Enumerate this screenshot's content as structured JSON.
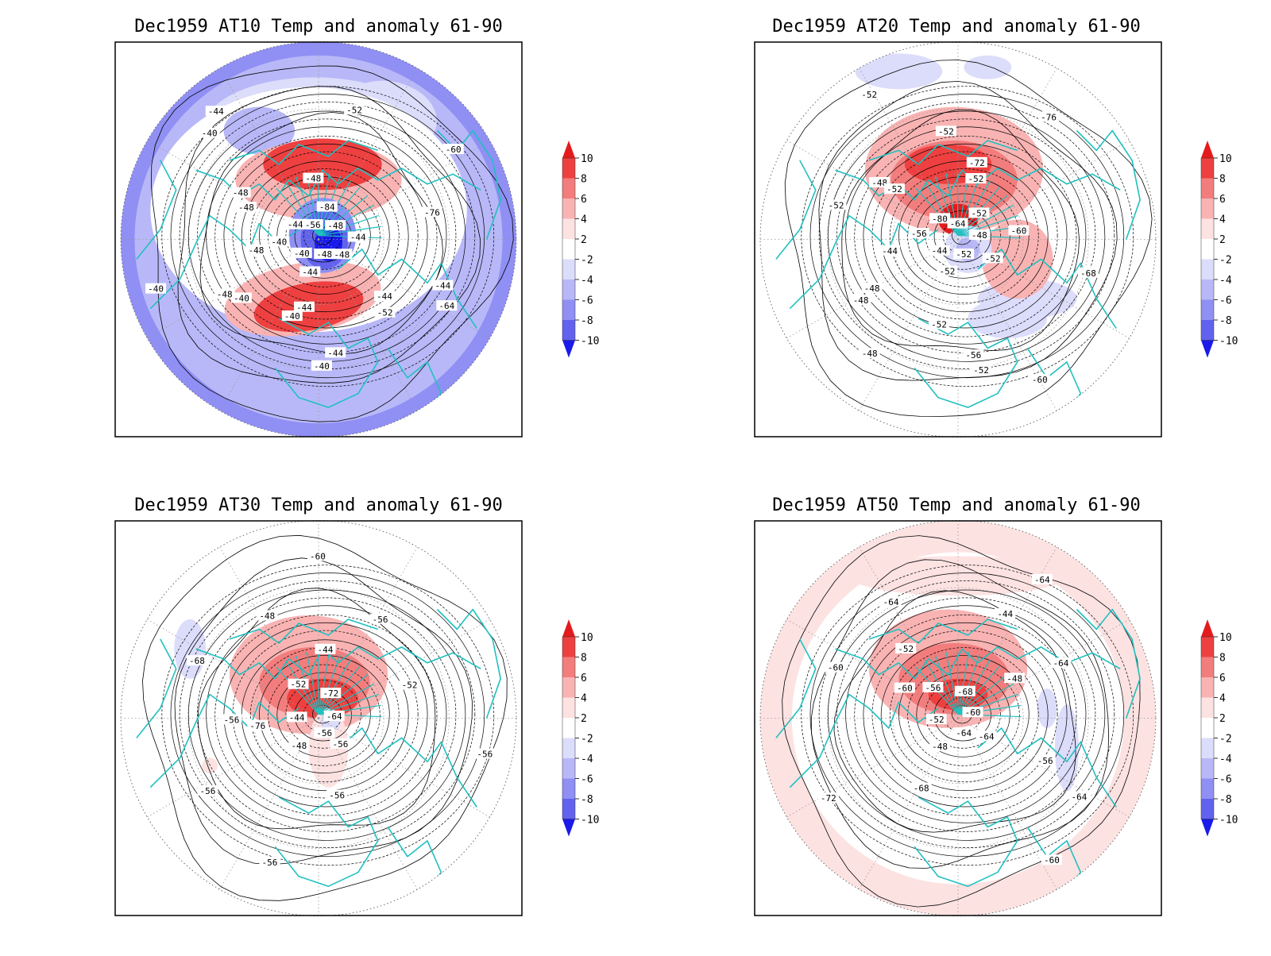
{
  "figure": {
    "panels": [
      {
        "id": "at10",
        "title": "Dec1959 AT10 Temp and anomaly 61-90",
        "anomaly_field": "at10",
        "contour_labels": [
          "-48",
          "-44",
          "-44",
          "-44",
          "-44",
          "-44",
          "-40",
          "-40",
          "-40",
          "-40",
          "-48",
          "-40",
          "-44",
          "-48",
          "-52",
          "-56",
          "-60",
          "-76",
          "-84",
          "-64",
          "-52",
          "-48",
          "-40",
          "-40",
          "-44",
          "-48",
          "-48",
          "-48",
          "-48",
          "-44"
        ]
      },
      {
        "id": "at20",
        "title": "Dec1959 AT20 Temp and anomaly 61-90",
        "anomaly_field": "at20",
        "contour_labels": [
          "-52",
          "-52",
          "-52",
          "-52",
          "-48",
          "-44",
          "-44",
          "-48",
          "-52",
          "-56",
          "-72",
          "-76",
          "-80",
          "-60",
          "-68",
          "-64",
          "-60",
          "-56",
          "-52",
          "-48",
          "-48",
          "-48",
          "-52",
          "-52",
          "-52",
          "-52",
          "-52"
        ]
      },
      {
        "id": "at30",
        "title": "Dec1959 AT30 Temp and anomaly 61-90",
        "anomaly_field": "at30",
        "contour_labels": [
          "-56",
          "-56",
          "-56",
          "-48",
          "-48",
          "-44",
          "-44",
          "-52",
          "-56",
          "-52",
          "-56",
          "-56",
          "-72",
          "-76",
          "-68",
          "-64",
          "-60",
          "-56",
          "-56"
        ]
      },
      {
        "id": "at50",
        "title": "Dec1959 AT50 Temp and anomaly 61-90",
        "anomaly_field": "at50",
        "contour_labels": [
          "-64",
          "-60",
          "-52",
          "-48",
          "-44",
          "-48",
          "-52",
          "-56",
          "-60",
          "-56",
          "-68",
          "-72",
          "-68",
          "-60",
          "-64",
          "-60",
          "-64",
          "-64",
          "-64",
          "-64"
        ]
      }
    ],
    "colorbar": {
      "ticks": [
        "10",
        "8",
        "6",
        "4",
        "2",
        "-2",
        "-4",
        "-6",
        "-8",
        "-10"
      ],
      "colors": [
        "#e41a1c",
        "#ee4040",
        "#f37d7d",
        "#f9b3b3",
        "#fde2e2",
        "#ffffff",
        "#dcdcfb",
        "#b8b8f8",
        "#8f8ff4",
        "#6262ef",
        "#1a1aea"
      ]
    },
    "colors": {
      "coast": "#20c0c0",
      "contour": "#000000",
      "grid": "#999999"
    }
  },
  "chart_data": [
    {
      "type": "heatmap",
      "title": "Dec1959 AT10 Temp and anomaly 61-90",
      "projection": "north polar stereographic",
      "field_units": "°C",
      "contour_range": [
        -84,
        -40
      ],
      "anomaly_range": [
        -10,
        10
      ],
      "colorbar_ticks": [
        10,
        8,
        6,
        4,
        2,
        -2,
        -4,
        -6,
        -8,
        -10
      ]
    },
    {
      "type": "heatmap",
      "title": "Dec1959 AT20 Temp and anomaly 61-90",
      "projection": "north polar stereographic",
      "field_units": "°C",
      "contour_range": [
        -80,
        -44
      ],
      "anomaly_range": [
        -10,
        10
      ],
      "colorbar_ticks": [
        10,
        8,
        6,
        4,
        2,
        -2,
        -4,
        -6,
        -8,
        -10
      ]
    },
    {
      "type": "heatmap",
      "title": "Dec1959 AT30 Temp and anomaly 61-90",
      "projection": "north polar stereographic",
      "field_units": "°C",
      "contour_range": [
        -76,
        -44
      ],
      "anomaly_range": [
        -10,
        10
      ],
      "colorbar_ticks": [
        10,
        8,
        6,
        4,
        2,
        -2,
        -4,
        -6,
        -8,
        -10
      ]
    },
    {
      "type": "heatmap",
      "title": "Dec1959 AT50 Temp and anomaly 61-90",
      "projection": "north polar stereographic",
      "field_units": "°C",
      "contour_range": [
        -72,
        -44
      ],
      "anomaly_range": [
        -10,
        10
      ],
      "colorbar_ticks": [
        10,
        8,
        6,
        4,
        2,
        -2,
        -4,
        -6,
        -8,
        -10
      ]
    }
  ]
}
